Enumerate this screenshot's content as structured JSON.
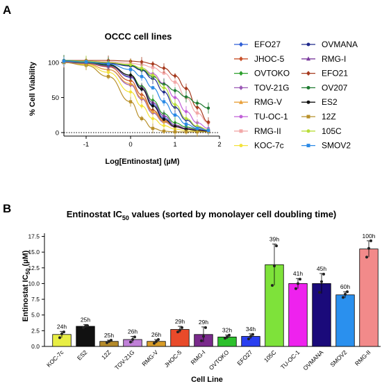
{
  "panels": {
    "a": "A",
    "b": "B"
  },
  "chart_data": [
    {
      "type": "line",
      "title": "OCCC cell lines",
      "xlabel": "Log[Entinostat] (µM)",
      "ylabel": "% Cell Viability",
      "xlim": [
        -1.5,
        2
      ],
      "ylim": [
        -5,
        110
      ],
      "xticks": [
        -1,
        0,
        1,
        2
      ],
      "yticks": [
        0,
        50,
        100
      ],
      "reference_line": {
        "y": 0,
        "style": "dotted"
      },
      "legend_position": "right",
      "x": [
        -1.5,
        -1,
        -0.5,
        0,
        0.25,
        0.5,
        0.75,
        1,
        1.25,
        1.5,
        1.75
      ],
      "series": [
        {
          "name": "EFO27",
          "color": "#2f5fd6",
          "marker": "diamond",
          "values": [
            101,
            100,
            96,
            79,
            62,
            40,
            21,
            9,
            5,
            3,
            2
          ]
        },
        {
          "name": "JHOC-5",
          "color": "#c8512a",
          "marker": "diamond",
          "values": [
            101,
            99,
            94,
            74,
            54,
            32,
            17,
            9,
            6,
            4,
            3
          ]
        },
        {
          "name": "OVTOKO",
          "color": "#2ca02c",
          "marker": "diamond",
          "values": [
            101,
            100,
            96,
            82,
            66,
            46,
            27,
            14,
            8,
            5,
            3
          ]
        },
        {
          "name": "TOV-21G",
          "color": "#9b59b6",
          "marker": "diamond",
          "values": [
            101,
            98,
            90,
            68,
            48,
            28,
            15,
            8,
            5,
            4,
            3
          ]
        },
        {
          "name": "RMG-V",
          "color": "#e8a03a",
          "marker": "triangle",
          "values": [
            100,
            98,
            90,
            70,
            50,
            30,
            16,
            9,
            6,
            4,
            3
          ]
        },
        {
          "name": "TU-OC-1",
          "color": "#c060d8",
          "marker": "circle",
          "values": [
            102,
            101,
            100,
            96,
            92,
            84,
            70,
            50,
            30,
            14,
            6
          ]
        },
        {
          "name": "RMG-II",
          "color": "#f2a8a8",
          "marker": "square",
          "values": [
            102,
            102,
            101,
            99,
            97,
            93,
            85,
            72,
            50,
            28,
            14
          ]
        },
        {
          "name": "KOC-7c",
          "color": "#f3e23a",
          "marker": "circle",
          "values": [
            100,
            97,
            86,
            58,
            38,
            20,
            10,
            5,
            3,
            2,
            2
          ]
        },
        {
          "name": "OVMANA",
          "color": "#1f2a8c",
          "marker": "circle",
          "values": [
            102,
            101,
            99,
            95,
            89,
            77,
            58,
            36,
            18,
            8,
            4
          ]
        },
        {
          "name": "RMG-I",
          "color": "#7b3b9e",
          "marker": "triangle",
          "values": [
            100,
            99,
            95,
            80,
            64,
            43,
            24,
            11,
            6,
            4,
            3
          ]
        },
        {
          "name": "EFO21",
          "color": "#a63a1e",
          "marker": "diamond",
          "values": [
            103,
            103,
            103,
            102,
            101,
            98,
            92,
            81,
            63,
            36,
            15
          ]
        },
        {
          "name": "OV207",
          "color": "#1e7a30",
          "marker": "circle",
          "values": [
            103,
            102,
            100,
            96,
            90,
            80,
            69,
            60,
            51,
            42,
            35
          ]
        },
        {
          "name": "ES2",
          "color": "#111111",
          "marker": "circle",
          "values": [
            102,
            101,
            97,
            82,
            62,
            38,
            19,
            9,
            5,
            3,
            2
          ]
        },
        {
          "name": "12Z",
          "color": "#b8902a",
          "marker": "square",
          "values": [
            100,
            96,
            80,
            44,
            20,
            6,
            2,
            1,
            1,
            1,
            1
          ]
        },
        {
          "name": "105C",
          "color": "#b9dd3a",
          "marker": "circle",
          "values": [
            102,
            102,
            100,
            97,
            92,
            82,
            64,
            40,
            20,
            9,
            4
          ]
        },
        {
          "name": "SMOV2",
          "color": "#2b8ae6",
          "marker": "square",
          "values": [
            102,
            101,
            98,
            90,
            80,
            64,
            44,
            25,
            12,
            6,
            3
          ]
        }
      ]
    },
    {
      "type": "bar",
      "title_main": "Entinostat IC",
      "title_sub": "50",
      "title_tail": " values (sorted by monolayer cell doubling time)",
      "xlabel": "Cell Line",
      "ylabel_main": "Entinostat IC",
      "ylabel_sub": "50",
      "ylabel_tail": " (µM)",
      "ylim": [
        0,
        18
      ],
      "yticks": [
        0,
        2.5,
        5,
        7.5,
        10,
        12.5,
        15,
        17.5
      ],
      "ytick_labels": [
        "0.0",
        "2.5",
        "5.0",
        "7.5",
        "10.0",
        "12.5",
        "15.0",
        "17.5"
      ],
      "categories": [
        "KOC-7c",
        "ES2",
        "12Z",
        "TOV-21G",
        "RMG-V",
        "JHOC-5",
        "RMG-I",
        "OVTOKO",
        "EFO27",
        "105C",
        "TU-OC-1",
        "OVMANA",
        "SMOV2",
        "RMG-II"
      ],
      "values": [
        1.9,
        3.2,
        0.8,
        1.1,
        0.8,
        2.7,
        1.9,
        1.5,
        1.6,
        13.0,
        10.0,
        10.0,
        8.2,
        15.5
      ],
      "errors": [
        0.5,
        0.3,
        0.2,
        0.5,
        0.3,
        0.5,
        1.2,
        0.3,
        0.4,
        3.3,
        0.8,
        1.6,
        0.5,
        1.3
      ],
      "points": [
        [
          1.4,
          2.0,
          2.3
        ],
        [
          3.0,
          3.2,
          3.3
        ],
        [
          0.6,
          0.8,
          1.0
        ],
        [
          0.7,
          1.1,
          1.5
        ],
        [
          0.5,
          0.8,
          1.1
        ],
        [
          2.3,
          2.6,
          3.0
        ],
        [
          0.9,
          1.6,
          3.0
        ],
        [
          1.3,
          1.5,
          1.8
        ],
        [
          1.2,
          1.6,
          1.9
        ],
        [
          9.7,
          12.8,
          16.0
        ],
        [
          9.2,
          10.0,
          10.7
        ],
        [
          8.6,
          10.3,
          11.5
        ],
        [
          7.8,
          8.3,
          8.7
        ],
        [
          14.2,
          15.6,
          16.8
        ]
      ],
      "labels": [
        "24h",
        "25h",
        "25h",
        "26h",
        "26h",
        "29h",
        "29h",
        "32h",
        "34h",
        "39h",
        "41h",
        "45h",
        "60h",
        "100h"
      ],
      "colors": [
        "#e8ee44",
        "#111111",
        "#b48a2a",
        "#c080d8",
        "#d89c28",
        "#e84a2a",
        "#7a2a8c",
        "#2cc02c",
        "#2a3ff0",
        "#7ee23a",
        "#ee22ee",
        "#1a0a7a",
        "#2a90ee",
        "#f28a8a"
      ]
    }
  ]
}
